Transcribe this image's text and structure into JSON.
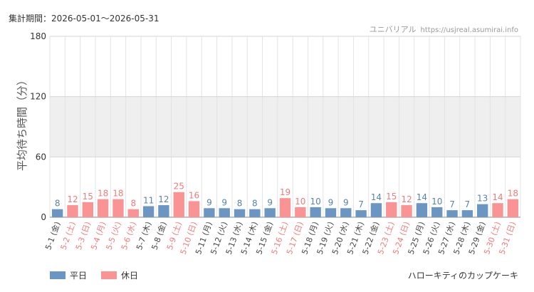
{
  "header": {
    "period": "集計期間：2026-05-01〜2026-05-31",
    "site_name": "ユニバリアル",
    "site_url": "https://usjreal.asumirai.info"
  },
  "footer": {
    "attraction": "ハローキティのカップケーキ"
  },
  "colors": {
    "weekday": "#6b96c4",
    "holiday": "#fa9394",
    "weekday_label": "#5a82ad",
    "holiday_label": "#f07b7b",
    "band": "#efefef",
    "grid": "#e3e3e3"
  },
  "chart_data": {
    "type": "bar",
    "ylabel": "平均待ち時間（分）",
    "ylim": [
      0,
      180
    ],
    "yticks": [
      "0",
      "60",
      "120",
      "180"
    ],
    "band_range": [
      60,
      120
    ],
    "grid": true,
    "legend_position": "bottom-left",
    "categories": [
      "5-1 (金)",
      "5-2 (土)",
      "5-3 (日)",
      "5-4 (月)",
      "5-5 (火)",
      "5-6 (水)",
      "5-7 (木)",
      "5-8 (金)",
      "5-9 (土)",
      "5-10 (日)",
      "5-11 (月)",
      "5-12 (火)",
      "5-13 (水)",
      "5-14 (木)",
      "5-15 (金)",
      "5-16 (土)",
      "5-17 (日)",
      "5-18 (月)",
      "5-19 (火)",
      "5-20 (水)",
      "5-21 (木)",
      "5-22 (金)",
      "5-23 (土)",
      "5-24 (日)",
      "5-25 (月)",
      "5-26 (火)",
      "5-27 (水)",
      "5-28 (木)",
      "5-29 (金)",
      "5-30 (土)",
      "5-31 (日)"
    ],
    "values": [
      8,
      12,
      15,
      18,
      18,
      8,
      11,
      12,
      25,
      16,
      9,
      9,
      8,
      8,
      9,
      19,
      10,
      10,
      9,
      9,
      7,
      14,
      15,
      12,
      14,
      10,
      7,
      7,
      13,
      14,
      18
    ],
    "day_type": [
      "weekday",
      "holiday",
      "holiday",
      "holiday",
      "holiday",
      "holiday",
      "weekday",
      "weekday",
      "holiday",
      "holiday",
      "weekday",
      "weekday",
      "weekday",
      "weekday",
      "weekday",
      "holiday",
      "holiday",
      "weekday",
      "weekday",
      "weekday",
      "weekday",
      "weekday",
      "holiday",
      "holiday",
      "weekday",
      "weekday",
      "weekday",
      "weekday",
      "weekday",
      "holiday",
      "holiday"
    ],
    "series": [
      {
        "name": "平日",
        "key": "weekday"
      },
      {
        "name": "休日",
        "key": "holiday"
      }
    ]
  }
}
